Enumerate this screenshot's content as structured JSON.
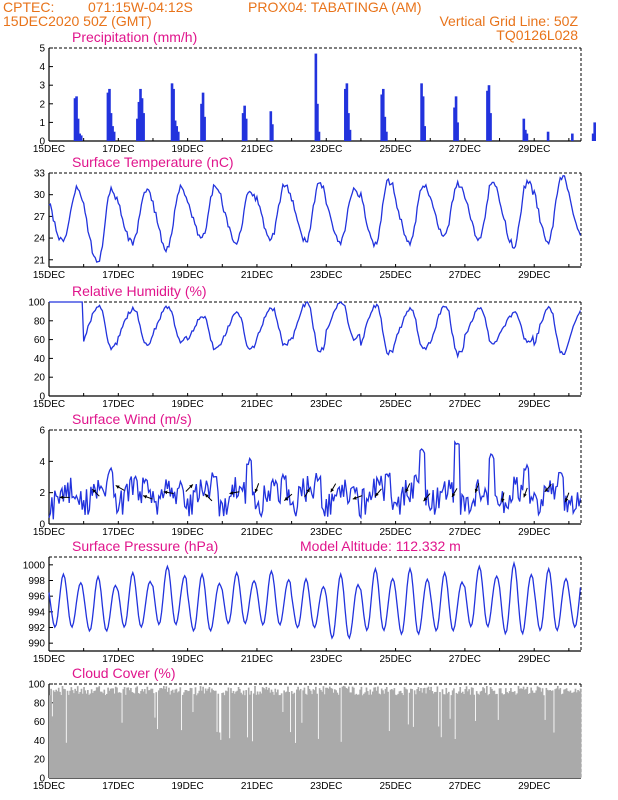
{
  "header": {
    "org": "CPTEC:",
    "coords": "071:15W-04:12S",
    "station": "PROX04: TABATINGA (AM)",
    "run": "15DEC2020 50Z (GMT)",
    "grid_note": "Vertical Grid Line: 50Z",
    "code": "TQ0126L028"
  },
  "x_labels": [
    "15DEC",
    "17DEC",
    "19DEC",
    "21DEC",
    "23DEC",
    "25DEC",
    "27DEC",
    "29DEC"
  ],
  "colors": {
    "header": "#e8731a",
    "title": "#e0158c",
    "series": "#2233dd",
    "cloud": "#aaaaaa"
  },
  "chart_data": [
    {
      "id": "precip",
      "type": "bar",
      "title": "Precipitation (mm/h)",
      "ylim": [
        0,
        5
      ],
      "yticks": [
        "0",
        "1",
        "2",
        "3",
        "4",
        "5"
      ],
      "events": [
        {
          "day": 0.75,
          "values": [
            2.3,
            2.4,
            1.2,
            0.4,
            0.3
          ]
        },
        {
          "day": 1.7,
          "values": [
            2.6,
            2.8,
            1.5,
            0.8,
            0.5
          ]
        },
        {
          "day": 2.55,
          "values": [
            1.2,
            2.1,
            2.8,
            2.3,
            1.5
          ]
        },
        {
          "day": 3.55,
          "values": [
            3.1,
            2.8,
            1.1,
            0.8,
            0.5
          ]
        },
        {
          "day": 4.4,
          "values": [
            2.0,
            2.6,
            1.3
          ]
        },
        {
          "day": 5.6,
          "values": [
            1.5,
            1.9,
            1.2
          ]
        },
        {
          "day": 6.4,
          "values": [
            1.6,
            0.9
          ]
        },
        {
          "day": 7.7,
          "values": [
            4.7,
            2.0,
            0.5
          ]
        },
        {
          "day": 8.55,
          "values": [
            2.8,
            3.1,
            1.5,
            0.6
          ]
        },
        {
          "day": 9.6,
          "values": [
            2.5,
            2.8,
            1.3,
            0.5
          ]
        },
        {
          "day": 10.75,
          "values": [
            3.1,
            2.4,
            0.8
          ]
        },
        {
          "day": 11.7,
          "values": [
            1.8,
            2.4,
            1.0
          ]
        },
        {
          "day": 12.65,
          "values": [
            2.7,
            3.0,
            1.5
          ]
        },
        {
          "day": 13.7,
          "values": [
            1.2,
            0.6,
            0.4
          ]
        },
        {
          "day": 14.4,
          "values": [
            0.5
          ]
        },
        {
          "day": 15.1,
          "values": [
            0.4
          ]
        },
        {
          "day": 15.7,
          "values": [
            0.4,
            1.0
          ]
        }
      ]
    },
    {
      "id": "temp",
      "type": "line",
      "title": "Surface Temperature (nC)",
      "ylim": [
        20,
        33
      ],
      "yticks": [
        "21",
        "24",
        "27",
        "30",
        "33"
      ],
      "tick_values": [
        21,
        24,
        27,
        30,
        33
      ],
      "min_temps": [
        23.5,
        20.8,
        23.3,
        22.5,
        24.0,
        23.5,
        24.0,
        23.5,
        23.5,
        23.0,
        23.5,
        24.5,
        24.0,
        23.0,
        23.5,
        24.0
      ],
      "max_temps": [
        30.8,
        30.9,
        30.6,
        31.0,
        31.2,
        30.4,
        31.2,
        31.5,
        30.8,
        32.0,
        31.3,
        31.4,
        31.8,
        31.7,
        32.5,
        32.0
      ]
    },
    {
      "id": "rh",
      "type": "line",
      "title": "Relative Humidity (%)",
      "ylim": [
        0,
        100
      ],
      "yticks": [
        "0",
        "20",
        "40",
        "60",
        "80",
        "100"
      ],
      "peaks": [
        100,
        95,
        93,
        95,
        85,
        88,
        93,
        100,
        100,
        97,
        92,
        95,
        93,
        88,
        94,
        95
      ],
      "troughs": [
        100,
        50,
        55,
        58,
        50,
        50,
        55,
        48,
        60,
        45,
        50,
        45,
        55,
        58,
        45,
        50
      ]
    },
    {
      "id": "wind",
      "type": "line",
      "title": "Surface Wind (m/s)",
      "ylim": [
        0,
        6
      ],
      "yticks": [
        "0",
        "2",
        "4",
        "6"
      ],
      "daily_max": [
        2.0,
        3.7,
        3.0,
        2.8,
        3.3,
        4.3,
        3.2,
        3.3,
        2.5,
        3.4,
        4.9,
        5.3,
        4.6,
        4.0,
        3.5,
        5.0
      ],
      "daily_min": [
        0.3,
        0.6,
        0.6,
        0.6,
        0.6,
        0.6,
        0.5,
        0.5,
        0.6,
        0.6,
        0.6,
        0.6,
        0.7,
        0.7,
        0.6,
        0.7
      ],
      "barbs": [
        [
          0.45,
          270
        ],
        [
          1.35,
          315
        ],
        [
          2.05,
          300
        ],
        [
          2.85,
          290
        ],
        [
          3.45,
          280
        ],
        [
          4.05,
          45
        ],
        [
          4.6,
          315
        ],
        [
          5.35,
          260
        ],
        [
          6.0,
          200
        ],
        [
          6.9,
          230
        ],
        [
          7.45,
          30
        ],
        [
          8.2,
          210
        ],
        [
          8.9,
          250
        ],
        [
          9.5,
          220
        ],
        [
          10.35,
          205
        ],
        [
          10.9,
          220
        ],
        [
          11.7,
          210
        ],
        [
          12.35,
          200
        ],
        [
          13.1,
          190
        ],
        [
          13.75,
          200
        ],
        [
          14.4,
          220
        ],
        [
          14.95,
          200
        ]
      ]
    },
    {
      "id": "pres",
      "type": "line",
      "title": "Surface Pressure (hPa)",
      "extra": "Model Altitude: 112.332 m",
      "ylim": [
        989,
        1001
      ],
      "yticks": [
        "990",
        "992",
        "994",
        "996",
        "998",
        "1000"
      ],
      "tick_values": [
        990,
        992,
        994,
        996,
        998,
        1000
      ],
      "minima": [
        991.5,
        991.0,
        991.5,
        991.8,
        991.0,
        992.0,
        991.8,
        991.5,
        990.0,
        991.0,
        990.5,
        991.0,
        991.5,
        990.5,
        991.0,
        991.5
      ],
      "maxima": [
        998.8,
        998.5,
        999.0,
        999.8,
        998.8,
        999.0,
        999.2,
        998.2,
        998.8,
        999.5,
        999.5,
        999.0,
        999.8,
        1000.2,
        999.5,
        999.0
      ]
    },
    {
      "id": "cloud",
      "type": "bar",
      "title": "Cloud Cover (%)",
      "ylim": [
        0,
        100
      ],
      "yticks": [
        "0",
        "20",
        "40",
        "60",
        "80",
        "100"
      ],
      "typical_value": 93
    }
  ]
}
